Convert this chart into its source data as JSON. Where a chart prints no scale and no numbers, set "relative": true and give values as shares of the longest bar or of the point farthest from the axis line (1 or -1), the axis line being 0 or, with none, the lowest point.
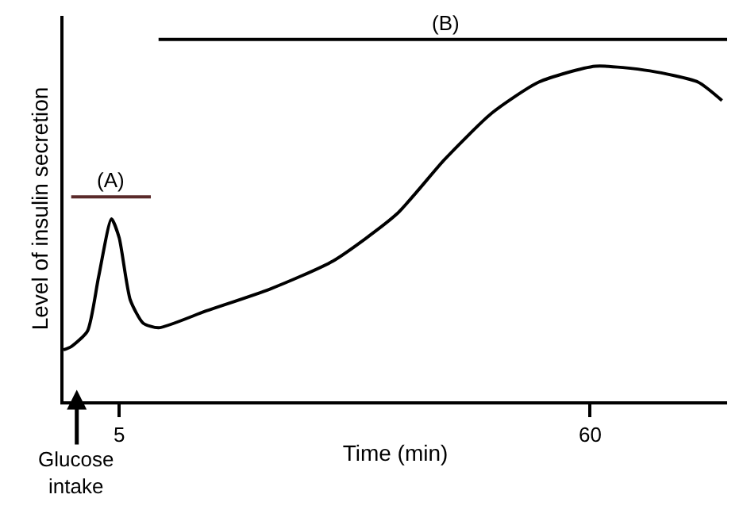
{
  "chart_data": {
    "type": "line",
    "relative": true,
    "xlabel": "Time (min)",
    "ylabel": "Level of insulin secretion",
    "x": [
      -1.5,
      -0.6,
      1.3,
      2.6,
      4.1,
      5.0,
      6.3,
      7.8,
      9.6,
      15.2,
      22.6,
      30,
      37.4,
      43,
      48.5,
      54,
      60.6,
      67,
      72.6,
      75.4
    ],
    "series": [
      {
        "color": "#000000",
        "values": [
          0.142,
          0.151,
          0.194,
          0.344,
          0.504,
          0.452,
          0.28,
          0.216,
          0.203,
          0.25,
          0.31,
          0.388,
          0.517,
          0.668,
          0.796,
          0.882,
          0.926,
          0.913,
          0.882,
          0.831
        ]
      },
      {
        "color": "#5a2a2a",
        "x": [
          -0.6,
          8.7
        ],
        "values": [
          0.565,
          0.565
        ]
      },
      {
        "color": "#000000",
        "x": [
          9.6,
          76
        ],
        "values": [
          1.0,
          1.0
        ]
      }
    ],
    "xlim": [
      -1.5,
      76
    ],
    "xticks": [
      5,
      60
    ],
    "annotations": [
      {
        "text": "(A)",
        "x": 4,
        "y": 0.565
      },
      {
        "text": "(B)",
        "x": 43,
        "y": 1.0
      },
      "Glucose\nintake"
    ],
    "marker": "none",
    "line_style": "solid"
  }
}
